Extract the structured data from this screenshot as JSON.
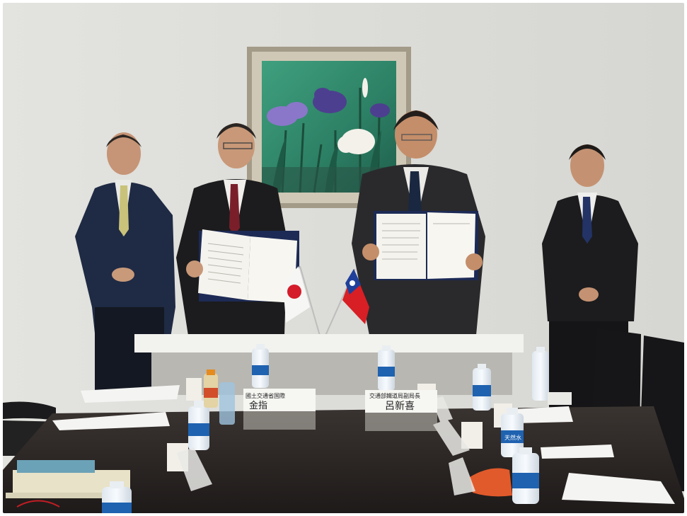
{
  "photo": {
    "nameplates": [
      {
        "text": "國土交通省国際"
      },
      {
        "text": "金指"
      },
      {
        "text": "交通部鐵道局副局長"
      },
      {
        "text": "呂新喜"
      }
    ],
    "flags": [
      {
        "label": "Japan"
      },
      {
        "label": "Taiwan"
      }
    ],
    "bottle_labels": [
      "天然水"
    ],
    "colors": {
      "wall": "#dcdcd8",
      "table": "#2a2624",
      "suit_navy": "#1f2a44",
      "suit_dark": "#1c1c1e",
      "frame": "#a39a88",
      "painting_bg": "#2f8a6a"
    }
  }
}
